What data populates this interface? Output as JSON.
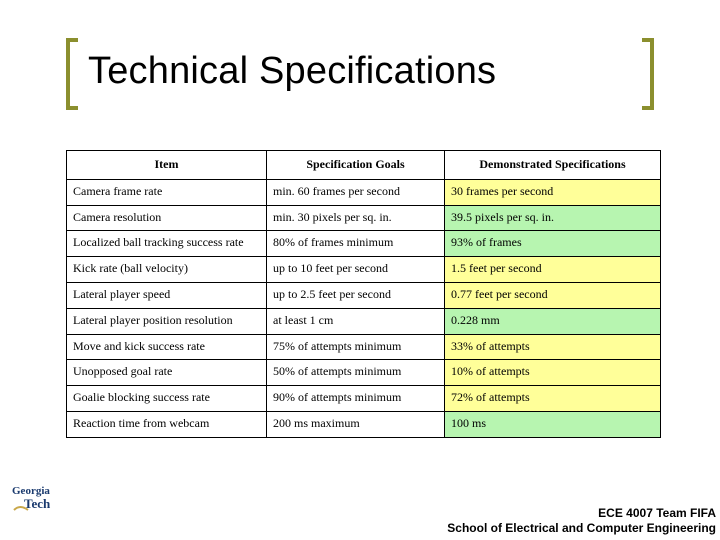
{
  "title": "Technical Specifications",
  "bracket_color": "#8b8f2e",
  "table": {
    "headers": [
      "Item",
      "Specification Goals",
      "Demonstrated Specifications"
    ],
    "rows": [
      {
        "item": "Camera frame rate",
        "goal": "min. 60 frames per second",
        "demo": "30 frames per second",
        "status": "bad"
      },
      {
        "item": "Camera resolution",
        "goal": "min. 30 pixels per sq. in.",
        "demo": "39.5 pixels per sq. in.",
        "status": "good"
      },
      {
        "item": "Localized ball tracking success rate",
        "goal": "80% of frames minimum",
        "demo": "93% of frames",
        "status": "good"
      },
      {
        "item": "Kick rate (ball velocity)",
        "goal": "up to 10 feet per second",
        "demo": "1.5 feet per second",
        "status": "bad"
      },
      {
        "item": "Lateral player speed",
        "goal": "up to 2.5 feet per second",
        "demo": "0.77 feet per second",
        "status": "bad"
      },
      {
        "item": "Lateral player position resolution",
        "goal": "at least 1 cm",
        "demo": "0.228 mm",
        "status": "good"
      },
      {
        "item": "Move and kick success rate",
        "goal": "75% of attempts minimum",
        "demo": "33% of attempts",
        "status": "bad"
      },
      {
        "item": "Unopposed goal rate",
        "goal": "50% of attempts minimum",
        "demo": "10% of attempts",
        "status": "bad"
      },
      {
        "item": "Goalie blocking success rate",
        "goal": "90% of attempts minimum",
        "demo": "72% of attempts",
        "status": "bad"
      },
      {
        "item": "Reaction time from webcam",
        "goal": "200 ms maximum",
        "demo": "100 ms",
        "status": "good"
      }
    ],
    "status_colors": {
      "good": "#b7f5b0",
      "bad": "#ffff99"
    }
  },
  "logo": {
    "name": "Georgia Tech",
    "text_color": "#1a3a6e",
    "accent_color": "#c9a84a"
  },
  "footer": {
    "line1": "ECE 4007 Team FIFA",
    "line2": "School of Electrical and Computer Engineering"
  }
}
